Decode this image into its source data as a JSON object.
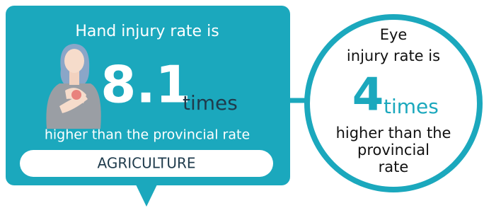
{
  "hand": {
    "title": "Hand injury rate is",
    "multiplier": 8.1,
    "unit": "times",
    "caption": "higher than the provincial rate",
    "sector": "AGRICULTURE"
  },
  "eye": {
    "title_lines": [
      "Eye",
      "injury rate is"
    ],
    "multiplier": 4,
    "unit": "times",
    "caption_lines": [
      "higher than the",
      "provincial",
      "rate"
    ]
  }
}
